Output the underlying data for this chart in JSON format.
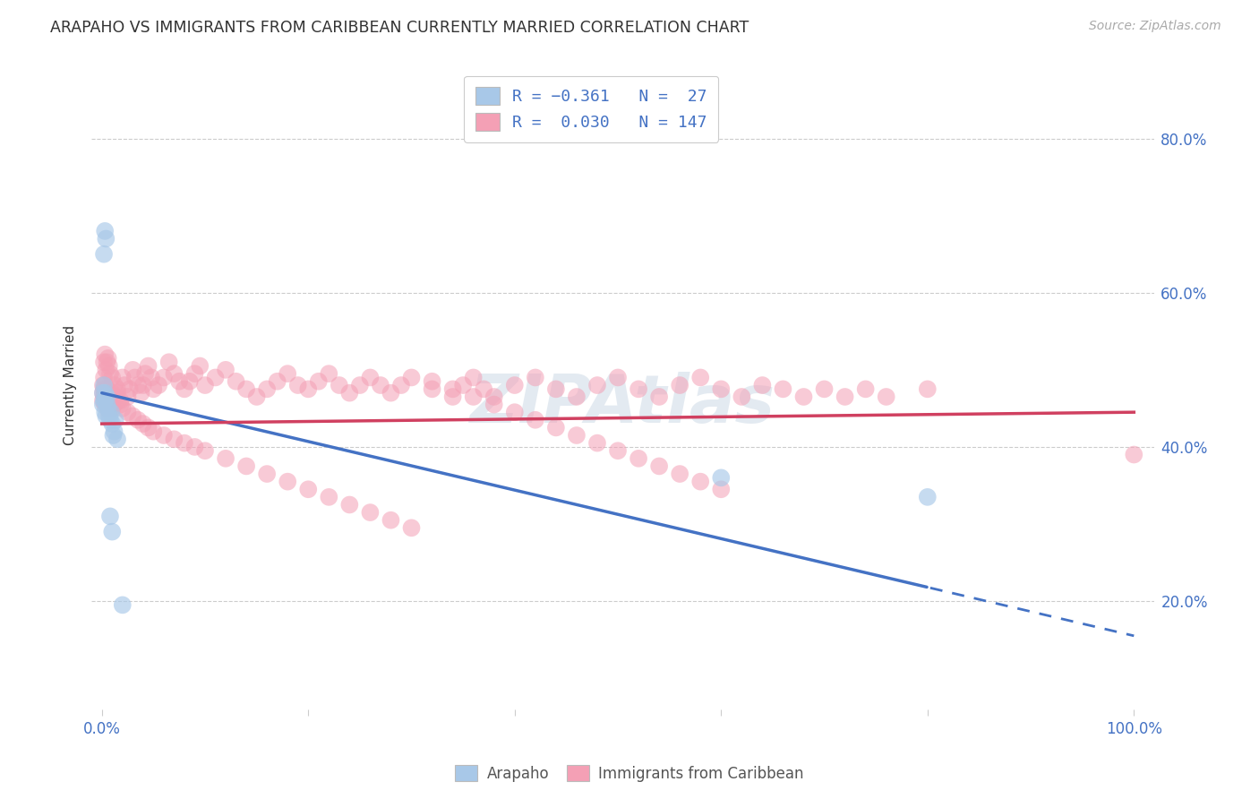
{
  "title": "ARAPAHO VS IMMIGRANTS FROM CARIBBEAN CURRENTLY MARRIED CORRELATION CHART",
  "source": "Source: ZipAtlas.com",
  "ylabel": "Currently Married",
  "legend_label1": "Arapaho",
  "legend_label2": "Immigrants from Caribbean",
  "color_blue": "#A8C8E8",
  "color_pink": "#F4A0B5",
  "color_blue_line": "#4472C4",
  "color_pink_line": "#D04060",
  "watermark": "ZIPAtlas",
  "arapaho_x": [
    0.001,
    0.002,
    0.003,
    0.003,
    0.004,
    0.005,
    0.005,
    0.006,
    0.007,
    0.008,
    0.009,
    0.01,
    0.011,
    0.012,
    0.013,
    0.015,
    0.002,
    0.003,
    0.004,
    0.001,
    0.002,
    0.003,
    0.008,
    0.01,
    0.02,
    0.6,
    0.8
  ],
  "arapaho_y": [
    0.455,
    0.46,
    0.445,
    0.47,
    0.44,
    0.455,
    0.465,
    0.45,
    0.44,
    0.435,
    0.445,
    0.43,
    0.415,
    0.42,
    0.435,
    0.41,
    0.65,
    0.68,
    0.67,
    0.47,
    0.48,
    0.46,
    0.31,
    0.29,
    0.195,
    0.36,
    0.335
  ],
  "caribbean_x": [
    0.001,
    0.001,
    0.001,
    0.002,
    0.002,
    0.002,
    0.003,
    0.003,
    0.003,
    0.004,
    0.004,
    0.005,
    0.005,
    0.005,
    0.006,
    0.006,
    0.007,
    0.007,
    0.008,
    0.008,
    0.009,
    0.01,
    0.01,
    0.011,
    0.012,
    0.013,
    0.015,
    0.016,
    0.018,
    0.02,
    0.022,
    0.025,
    0.027,
    0.03,
    0.032,
    0.035,
    0.038,
    0.04,
    0.042,
    0.045,
    0.048,
    0.05,
    0.055,
    0.06,
    0.065,
    0.07,
    0.075,
    0.08,
    0.085,
    0.09,
    0.095,
    0.1,
    0.11,
    0.12,
    0.13,
    0.14,
    0.15,
    0.16,
    0.17,
    0.18,
    0.19,
    0.2,
    0.21,
    0.22,
    0.23,
    0.24,
    0.25,
    0.26,
    0.27,
    0.28,
    0.29,
    0.3,
    0.32,
    0.34,
    0.35,
    0.36,
    0.37,
    0.38,
    0.4,
    0.42,
    0.44,
    0.46,
    0.48,
    0.5,
    0.52,
    0.54,
    0.56,
    0.58,
    0.6,
    0.62,
    0.64,
    0.66,
    0.68,
    0.7,
    0.72,
    0.74,
    0.76,
    0.8,
    1.0,
    0.002,
    0.003,
    0.004,
    0.005,
    0.006,
    0.007,
    0.008,
    0.01,
    0.012,
    0.015,
    0.018,
    0.02,
    0.025,
    0.03,
    0.035,
    0.04,
    0.045,
    0.05,
    0.06,
    0.07,
    0.08,
    0.09,
    0.1,
    0.12,
    0.14,
    0.16,
    0.18,
    0.2,
    0.22,
    0.24,
    0.26,
    0.28,
    0.3,
    0.32,
    0.34,
    0.36,
    0.38,
    0.4,
    0.42,
    0.44,
    0.46,
    0.48,
    0.5,
    0.52,
    0.54,
    0.56,
    0.58,
    0.6
  ],
  "caribbean_y": [
    0.48,
    0.47,
    0.46,
    0.49,
    0.475,
    0.465,
    0.47,
    0.48,
    0.455,
    0.46,
    0.47,
    0.465,
    0.475,
    0.455,
    0.45,
    0.465,
    0.47,
    0.445,
    0.455,
    0.465,
    0.46,
    0.45,
    0.47,
    0.46,
    0.455,
    0.465,
    0.475,
    0.46,
    0.455,
    0.49,
    0.48,
    0.465,
    0.475,
    0.5,
    0.49,
    0.48,
    0.47,
    0.48,
    0.495,
    0.505,
    0.49,
    0.475,
    0.48,
    0.49,
    0.51,
    0.495,
    0.485,
    0.475,
    0.485,
    0.495,
    0.505,
    0.48,
    0.49,
    0.5,
    0.485,
    0.475,
    0.465,
    0.475,
    0.485,
    0.495,
    0.48,
    0.475,
    0.485,
    0.495,
    0.48,
    0.47,
    0.48,
    0.49,
    0.48,
    0.47,
    0.48,
    0.49,
    0.475,
    0.465,
    0.48,
    0.49,
    0.475,
    0.465,
    0.48,
    0.49,
    0.475,
    0.465,
    0.48,
    0.49,
    0.475,
    0.465,
    0.48,
    0.49,
    0.475,
    0.465,
    0.48,
    0.475,
    0.465,
    0.475,
    0.465,
    0.475,
    0.465,
    0.475,
    0.39,
    0.51,
    0.52,
    0.5,
    0.51,
    0.515,
    0.505,
    0.495,
    0.49,
    0.48,
    0.47,
    0.46,
    0.45,
    0.445,
    0.44,
    0.435,
    0.43,
    0.425,
    0.42,
    0.415,
    0.41,
    0.405,
    0.4,
    0.395,
    0.385,
    0.375,
    0.365,
    0.355,
    0.345,
    0.335,
    0.325,
    0.315,
    0.305,
    0.295,
    0.485,
    0.475,
    0.465,
    0.455,
    0.445,
    0.435,
    0.425,
    0.415,
    0.405,
    0.395,
    0.385,
    0.375,
    0.365,
    0.355,
    0.345
  ],
  "xlim": [
    -0.01,
    1.02
  ],
  "ylim": [
    0.06,
    0.9
  ],
  "right_yticks": [
    0.2,
    0.4,
    0.6,
    0.8
  ],
  "right_yticklabels": [
    "20.0%",
    "40.0%",
    "60.0%",
    "80.0%"
  ]
}
